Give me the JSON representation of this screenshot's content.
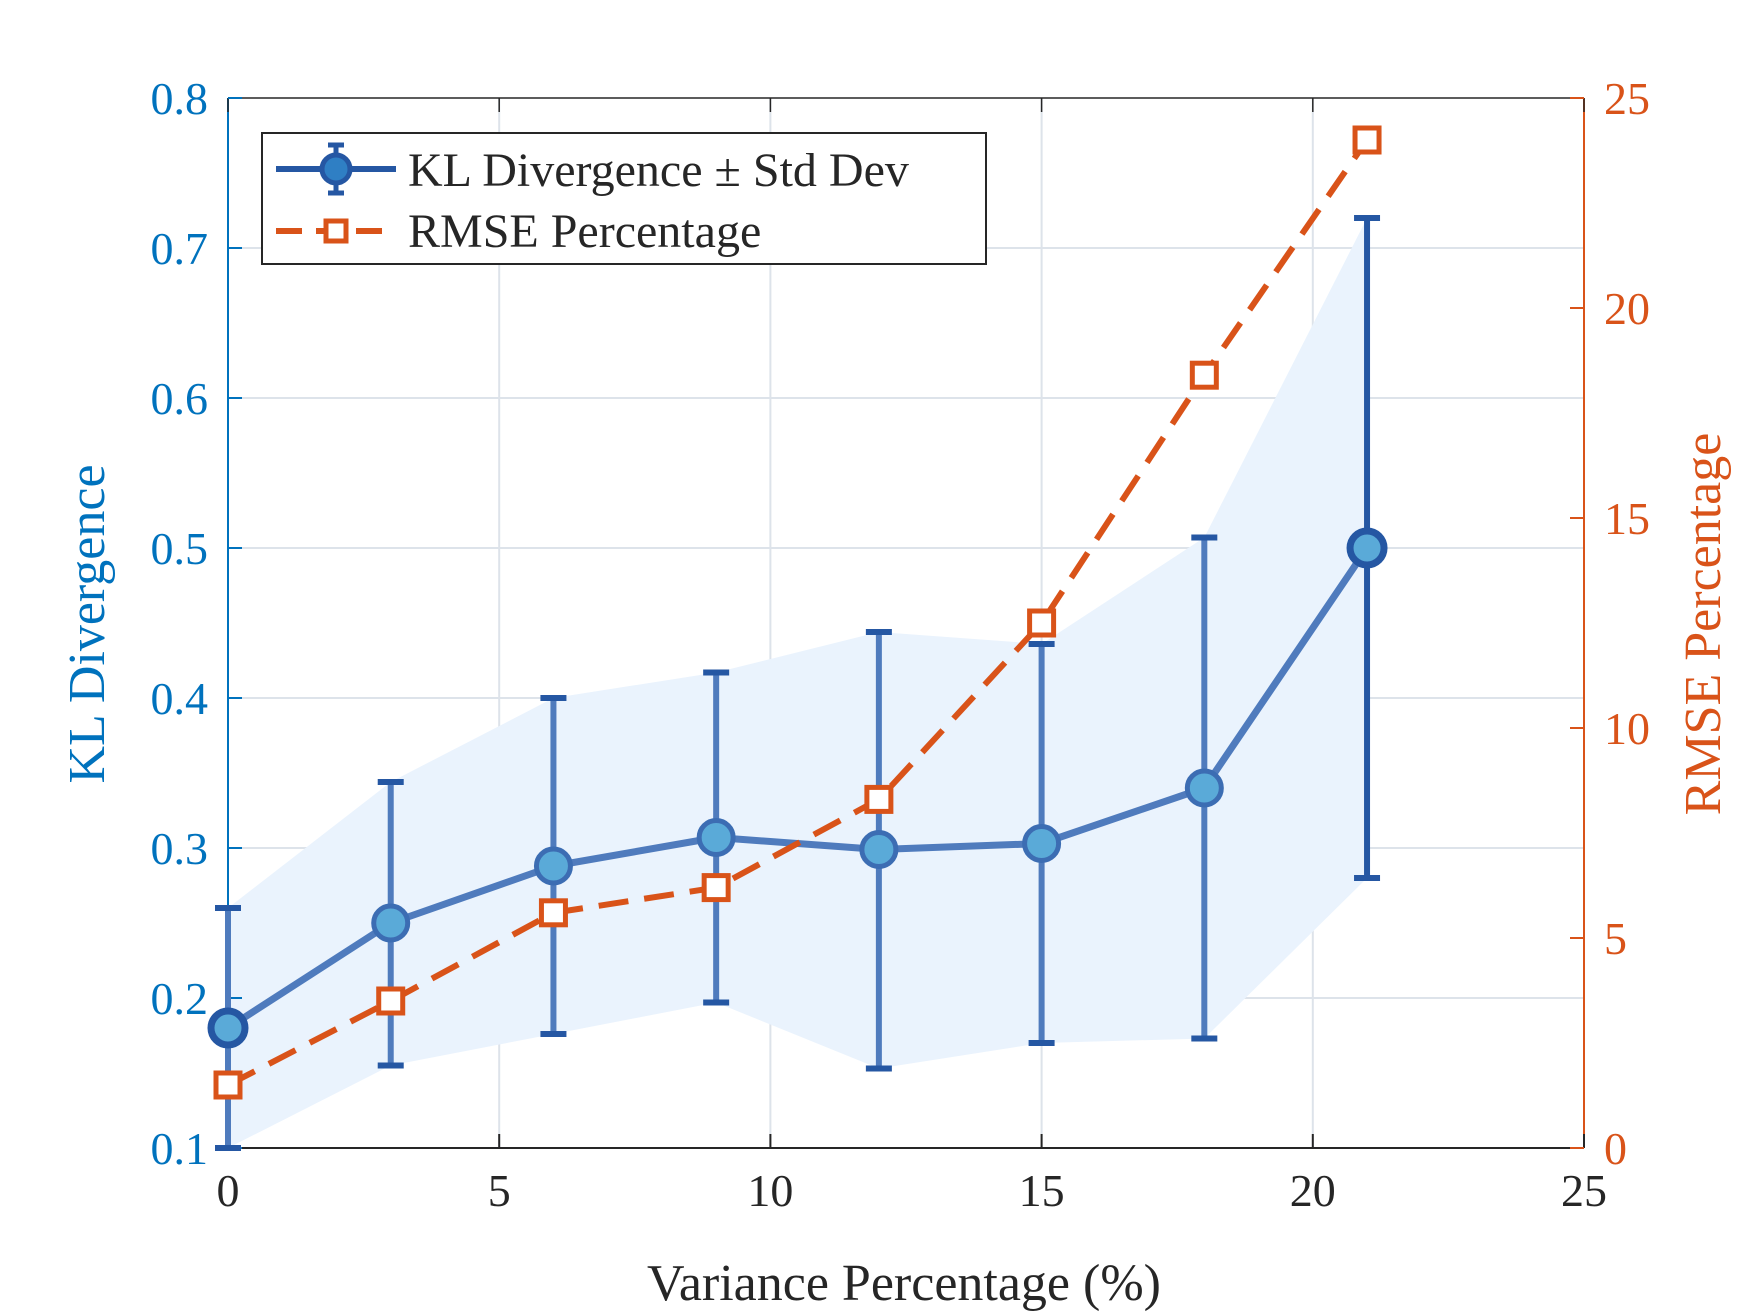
{
  "chart_data": {
    "type": "line",
    "title": "",
    "xlabel": "Variance Percentage (%)",
    "ylabel_left": "KL Divergence",
    "ylabel_right": "RMSE Percentage",
    "xlim": [
      0,
      25
    ],
    "ylim_left": [
      0.1,
      0.8
    ],
    "ylim_right": [
      0,
      25
    ],
    "xticks": [
      0,
      5,
      10,
      15,
      20,
      25
    ],
    "xtick_labels": [
      "0",
      "5",
      "10",
      "15",
      "20",
      "25"
    ],
    "yticks_left": [
      0.1,
      0.2,
      0.3,
      0.4,
      0.5,
      0.6,
      0.7,
      0.8
    ],
    "ytick_labels_left": [
      "0.1",
      "0.2",
      "0.3",
      "0.4",
      "0.5",
      "0.6",
      "0.7",
      "0.8"
    ],
    "yticks_right": [
      0,
      5,
      10,
      15,
      20,
      25
    ],
    "ytick_labels_right": [
      "0",
      "5",
      "10",
      "15",
      "20",
      "25"
    ],
    "grid": true,
    "legend_position": "top-left",
    "x": [
      0,
      3,
      6,
      9,
      12,
      15,
      18,
      21
    ],
    "series": [
      {
        "name": "KL Divergence ± Std Dev",
        "axis": "left",
        "style": "solid line with circle markers, error bars and shaded band",
        "values": [
          0.18,
          0.25,
          0.288,
          0.307,
          0.299,
          0.303,
          0.34,
          0.5
        ],
        "lower": [
          0.1,
          0.155,
          0.176,
          0.197,
          0.153,
          0.17,
          0.173,
          0.28
        ],
        "upper": [
          0.26,
          0.344,
          0.4,
          0.417,
          0.444,
          0.436,
          0.507,
          0.72
        ],
        "color": "#4f7bbd"
      },
      {
        "name": "RMSE Percentage",
        "axis": "right",
        "style": "dashed line with square markers",
        "values": [
          1.5,
          3.5,
          5.6,
          6.2,
          8.3,
          12.5,
          18.4,
          24.0
        ],
        "color": "#d95319"
      }
    ],
    "colors": {
      "left_axis": "#0072bd",
      "right_axis": "#d95319",
      "band": "#eaf3fd",
      "errorbar": "#2557a3",
      "marker_fill": "#5aaad8",
      "marker_edge": "#3c6db3",
      "grid": "#dde3ea",
      "axis_frame": "#262626"
    }
  }
}
